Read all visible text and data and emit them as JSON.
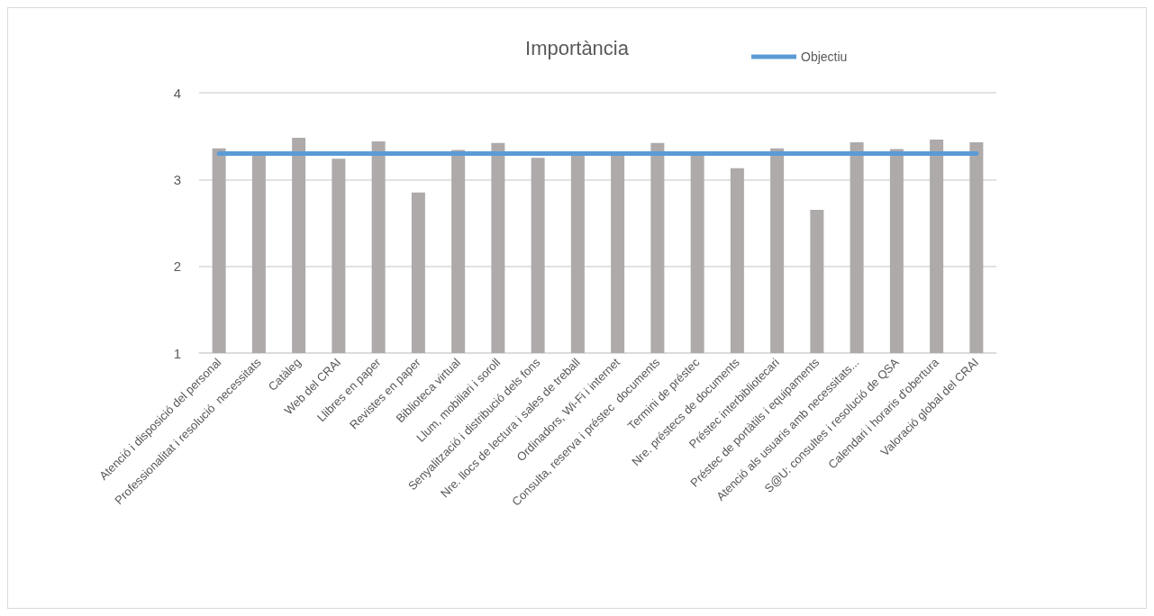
{
  "chart_data": {
    "type": "bar",
    "title": "Importància",
    "categories": [
      "Atenció i disposició del personal",
      "Professionalitat i resolució  necessitats",
      "Catàleg",
      "Web del CRAI",
      "Llibres en paper",
      "Revistes en paper",
      "Biblioteca virtual",
      "Llum, mobiliari i soroll",
      "Senyalització i distribució dels fons",
      "Nre. llocs de lectura i sales de treball",
      "Ordinadors, Wi-Fi i internet",
      "Consulta, reserva i préstec  documents",
      "Termini de préstec",
      "Nre. préstecs de documents",
      "Préstec interbibliotecari",
      "Préstec de portàtils i equipaments",
      "Atenció als usuaris amb necessitats...",
      "S@U: consultes i resolució de QSA",
      "Calendari i horaris d'obertura",
      "Valoració global del CRAI"
    ],
    "series": [
      {
        "color": "#aeaaaa",
        "values": [
          3.36,
          3.3,
          3.48,
          3.24,
          3.44,
          2.85,
          3.34,
          3.42,
          3.25,
          3.3,
          3.3,
          3.42,
          3.3,
          3.13,
          3.36,
          2.65,
          3.43,
          3.35,
          3.46,
          3.43
        ]
      },
      {
        "type": "line",
        "name": "Objectiu",
        "color": "#5b9bd5",
        "values": [
          3.3,
          3.3,
          3.3,
          3.3,
          3.3,
          3.3,
          3.3,
          3.3,
          3.3,
          3.3,
          3.3,
          3.3,
          3.3,
          3.3,
          3.3,
          3.3,
          3.3,
          3.3,
          3.3,
          3.3
        ]
      }
    ],
    "ylim": [
      1,
      4
    ],
    "yticks": [
      1,
      2,
      3,
      4
    ],
    "grid": "y",
    "legend": "top right",
    "marker": "none"
  }
}
